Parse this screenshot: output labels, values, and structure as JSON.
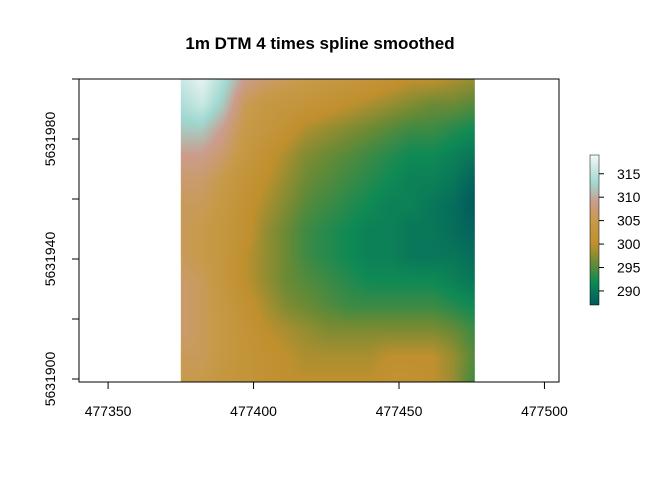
{
  "chart_data": {
    "type": "heatmap",
    "title": "1m  DTM 4 times spline smoothed",
    "xlabel": "",
    "ylabel": "",
    "xlim": [
      477340,
      477505
    ],
    "ylim": [
      5631899,
      5632000
    ],
    "x_ticks": [
      477350,
      477400,
      477450,
      477500
    ],
    "y_ticks": [
      5631900,
      5631920,
      5631940,
      5631960,
      5631980,
      5632000
    ],
    "y_tick_labels_shown": [
      5631900,
      5631940,
      5631980
    ],
    "raster_extent": {
      "xmin": 477375,
      "xmax": 477476,
      "ymin": 5631899,
      "ymax": 5632000
    },
    "value_range": [
      287,
      319
    ],
    "legend": {
      "position": "right",
      "ticks": [
        290,
        295,
        300,
        305,
        310,
        315
      ]
    },
    "palette": [
      {
        "value": 287,
        "color": "#005a5e"
      },
      {
        "value": 292,
        "color": "#0f8a55"
      },
      {
        "value": 296,
        "color": "#6b8a35"
      },
      {
        "value": 300,
        "color": "#c0902e"
      },
      {
        "value": 305,
        "color": "#c79a4a"
      },
      {
        "value": 309,
        "color": "#cc9c8c"
      },
      {
        "value": 313,
        "color": "#9fd8d0"
      },
      {
        "value": 319,
        "color": "#f4f9f7"
      }
    ],
    "grid_rows": 13,
    "grid_cols": 15,
    "z": [
      [
        316,
        318,
        314,
        309,
        307,
        306,
        305,
        304,
        303,
        302,
        301,
        300,
        300,
        299,
        298
      ],
      [
        314,
        316,
        312,
        306,
        304,
        303,
        302,
        301,
        300,
        299,
        298,
        297,
        296,
        296,
        295
      ],
      [
        312,
        312,
        309,
        305,
        303,
        301,
        299,
        298,
        297,
        296,
        295,
        294,
        294,
        293,
        292
      ],
      [
        309,
        309,
        307,
        304,
        301,
        299,
        297,
        296,
        295,
        294,
        293,
        292,
        292,
        291,
        290
      ],
      [
        307,
        307,
        305,
        302,
        300,
        298,
        296,
        295,
        294,
        293,
        292,
        291,
        291,
        290,
        288
      ],
      [
        306,
        306,
        304,
        301,
        299,
        297,
        295,
        294,
        293,
        292,
        291,
        291,
        290,
        289,
        287
      ],
      [
        306,
        305,
        303,
        301,
        298,
        296,
        294,
        293,
        292,
        291,
        291,
        290,
        290,
        289,
        288
      ],
      [
        306,
        305,
        303,
        300,
        298,
        296,
        294,
        293,
        292,
        291,
        291,
        290,
        290,
        290,
        289
      ],
      [
        307,
        306,
        303,
        300,
        298,
        296,
        295,
        294,
        293,
        292,
        292,
        292,
        292,
        291,
        290
      ],
      [
        307,
        306,
        304,
        301,
        299,
        297,
        296,
        295,
        294,
        294,
        294,
        294,
        294,
        293,
        292
      ],
      [
        307,
        306,
        304,
        302,
        300,
        299,
        298,
        297,
        297,
        297,
        297,
        297,
        297,
        296,
        294
      ],
      [
        306,
        306,
        304,
        302,
        301,
        300,
        299,
        299,
        299,
        299,
        300,
        300,
        300,
        298,
        295
      ],
      [
        305,
        305,
        303,
        302,
        301,
        300,
        300,
        300,
        300,
        300,
        301,
        301,
        300,
        298,
        294
      ]
    ]
  }
}
